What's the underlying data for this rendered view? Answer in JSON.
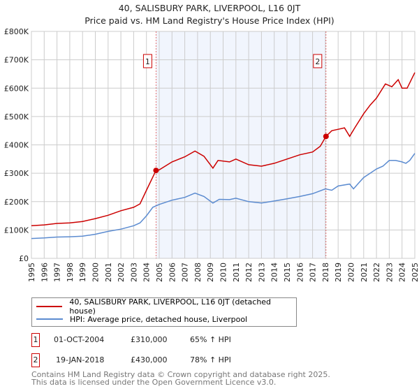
{
  "header": {
    "title": "40, SALISBURY PARK, LIVERPOOL, L16 0JT",
    "subtitle": "Price paid vs. HM Land Registry's House Price Index (HPI)"
  },
  "chart_data": {
    "type": "line",
    "title": "40, SALISBURY PARK, LIVERPOOL, L16 0JT",
    "subtitle": "Price paid vs. HM Land Registry's House Price Index (HPI)",
    "xlim": [
      1995,
      2025
    ],
    "ylim": [
      0,
      800000
    ],
    "x_ticks": [
      "1995",
      "1996",
      "1997",
      "1998",
      "1999",
      "2000",
      "2001",
      "2002",
      "2003",
      "2004",
      "2005",
      "2006",
      "2007",
      "2008",
      "2009",
      "2010",
      "2011",
      "2012",
      "2013",
      "2014",
      "2015",
      "2016",
      "2017",
      "2018",
      "2019",
      "2020",
      "2021",
      "2022",
      "2023",
      "2024",
      "2025"
    ],
    "y_ticks": [
      {
        "value": 0,
        "label": "£0"
      },
      {
        "value": 100000,
        "label": "£100K"
      },
      {
        "value": 200000,
        "label": "£200K"
      },
      {
        "value": 300000,
        "label": "£300K"
      },
      {
        "value": 400000,
        "label": "£400K"
      },
      {
        "value": 500000,
        "label": "£500K"
      },
      {
        "value": 600000,
        "label": "£600K"
      },
      {
        "value": 700000,
        "label": "£700K"
      },
      {
        "value": 800000,
        "label": "£800K"
      }
    ],
    "grid": true,
    "shaded_period": [
      2004.75,
      2018.05
    ],
    "series": [
      {
        "name": "40, SALISBURY PARK, LIVERPOOL, L16 0JT (detached house)",
        "color": "#cc0000",
        "x": [
          1995,
          1996,
          1997,
          1998,
          1999,
          2000,
          2001,
          2002,
          2003,
          2003.5,
          2004,
          2004.75,
          2005,
          2006,
          2007,
          2007.8,
          2008.5,
          2009.2,
          2009.6,
          2010.5,
          2011,
          2012,
          2013,
          2014,
          2015,
          2016,
          2017,
          2017.6,
          2018.05,
          2018.5,
          2019,
          2019.5,
          2019.9,
          2020.3,
          2021,
          2021.5,
          2022,
          2022.7,
          2023.2,
          2023.7,
          2024,
          2024.4,
          2025
        ],
        "y": [
          115000,
          118000,
          123000,
          125000,
          130000,
          140000,
          152000,
          168000,
          180000,
          192000,
          240000,
          310000,
          312000,
          340000,
          358000,
          378000,
          360000,
          318000,
          345000,
          340000,
          350000,
          330000,
          325000,
          335000,
          350000,
          365000,
          375000,
          395000,
          430000,
          450000,
          455000,
          460000,
          430000,
          460000,
          510000,
          540000,
          565000,
          615000,
          605000,
          630000,
          600000,
          600000,
          655000
        ]
      },
      {
        "name": "HPI: Average price, detached house, Liverpool",
        "color": "#5b8bd0",
        "x": [
          1995,
          1996,
          1997,
          1998,
          1999,
          2000,
          2001,
          2002,
          2003,
          2003.5,
          2004,
          2004.5,
          2005,
          2006,
          2007,
          2007.8,
          2008.5,
          2009.2,
          2009.7,
          2010.5,
          2011,
          2012,
          2013,
          2014,
          2015,
          2016,
          2017,
          2018,
          2018.5,
          2019,
          2019.9,
          2020.2,
          2020.6,
          2021,
          2021.5,
          2022,
          2022.5,
          2023,
          2023.5,
          2024,
          2024.3,
          2024.6,
          2025
        ],
        "y": [
          70000,
          72000,
          75000,
          76000,
          78000,
          85000,
          95000,
          103000,
          115000,
          125000,
          150000,
          180000,
          190000,
          205000,
          215000,
          230000,
          218000,
          195000,
          208000,
          207000,
          212000,
          200000,
          195000,
          202000,
          210000,
          218000,
          228000,
          245000,
          240000,
          255000,
          262000,
          245000,
          265000,
          285000,
          300000,
          315000,
          325000,
          345000,
          345000,
          340000,
          335000,
          345000,
          370000
        ]
      }
    ],
    "annotations": [
      {
        "label": "1",
        "x": 2004.75,
        "y": 310000
      },
      {
        "label": "2",
        "x": 2018.05,
        "y": 430000
      }
    ],
    "legend_position": "below"
  },
  "legend": {
    "items": [
      {
        "label": "40, SALISBURY PARK, LIVERPOOL, L16 0JT (detached house)",
        "color": "#cc0000"
      },
      {
        "label": "HPI: Average price, detached house, Liverpool",
        "color": "#5b8bd0"
      }
    ]
  },
  "transactions": [
    {
      "num": "1",
      "date": "01-OCT-2004",
      "price": "£310,000",
      "hpi": "65% ↑ HPI"
    },
    {
      "num": "2",
      "date": "19-JAN-2018",
      "price": "£430,000",
      "hpi": "78% ↑ HPI"
    }
  ],
  "footer": {
    "line1": "Contains HM Land Registry data © Crown copyright and database right 2025.",
    "line2": "This data is licensed under the Open Government Licence v3.0."
  }
}
